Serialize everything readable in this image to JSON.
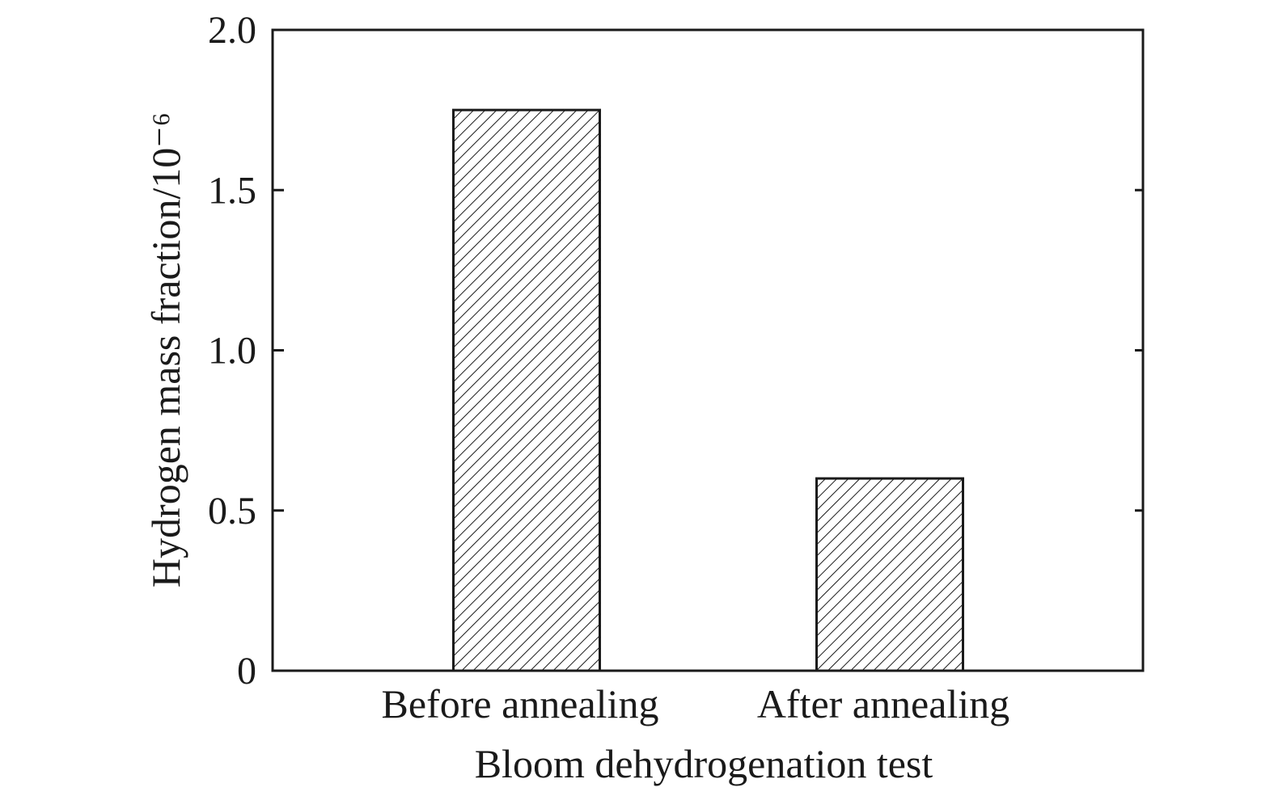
{
  "chart_data": {
    "type": "bar",
    "categories": [
      "Before annealing",
      "After annealing"
    ],
    "values": [
      1.75,
      0.6
    ],
    "title": "",
    "xlabel": "Bloom dehydrogenation test",
    "ylabel": "Hydrogen mass fraction/10⁻⁶",
    "ylim": [
      0,
      2.0
    ],
    "yticks": [
      "0",
      "0.5",
      "1.0",
      "1.5",
      "2.0"
    ],
    "ytick_values": [
      0,
      0.5,
      1.0,
      1.5,
      2.0
    ],
    "grid": false,
    "legend": "none",
    "bar_fill": "diagonal-hatch",
    "colors": {
      "axis": "#1a1a1a",
      "bar_edge": "#1a1a1a",
      "hatch": "#1a1a1a",
      "background": "#ffffff"
    }
  }
}
